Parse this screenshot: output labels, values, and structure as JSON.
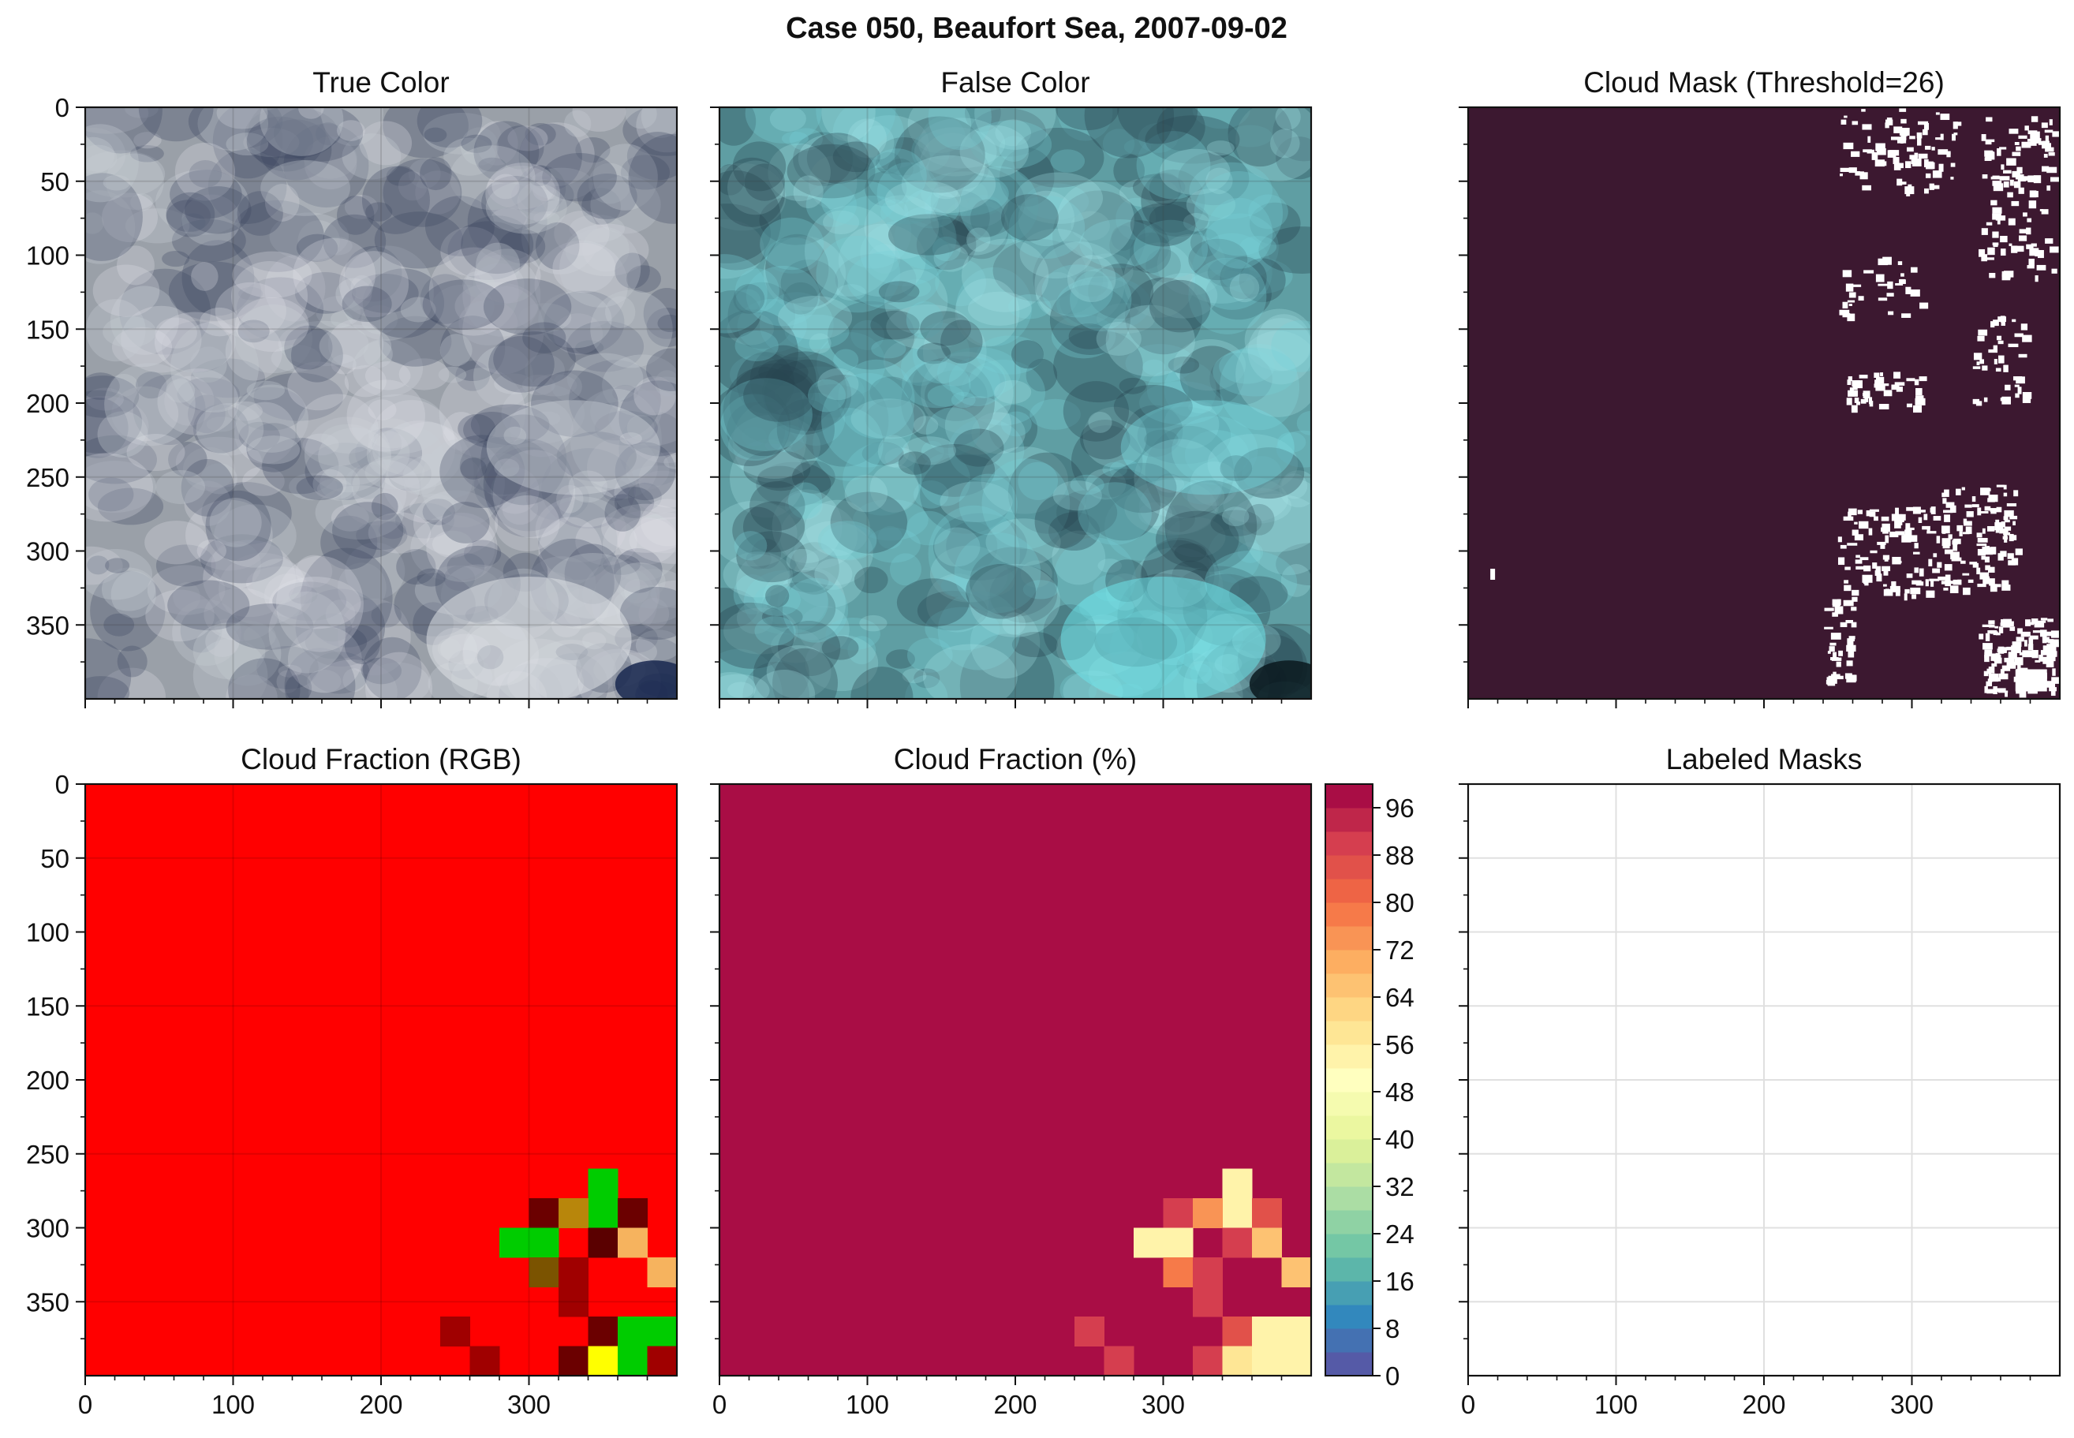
{
  "figure": {
    "suptitle": "Case 050, Beaufort Sea, 2007-09-02"
  },
  "panels": [
    {
      "id": "true-color",
      "title": "True Color"
    },
    {
      "id": "false-color",
      "title": "False Color"
    },
    {
      "id": "cloud-mask",
      "title": "Cloud Mask (Threshold=26)"
    },
    {
      "id": "cloud-fraction-rgb",
      "title": "Cloud Fraction (RGB)"
    },
    {
      "id": "cloud-fraction-pct",
      "title": "Cloud Fraction (%)"
    },
    {
      "id": "labeled-masks",
      "title": "Labeled Masks"
    }
  ],
  "colors": {
    "mask_background": "#3c1830",
    "mask_cloud": "#ffffff",
    "fraction_rgb_main": "#ff0000",
    "fraction_pct_main": "#9a0041"
  },
  "chart_data": [
    {
      "type": "image",
      "panel": "True Color",
      "ylim": [
        400,
        0
      ],
      "xlim": [
        0,
        400
      ],
      "y_ticks": [
        0,
        50,
        100,
        150,
        200,
        250,
        300,
        350
      ],
      "grid": true
    },
    {
      "type": "image",
      "panel": "False Color",
      "ylim": [
        400,
        0
      ],
      "xlim": [
        0,
        400
      ],
      "grid": true
    },
    {
      "type": "image",
      "panel": "Cloud Mask (Threshold=26)",
      "ylim": [
        400,
        0
      ],
      "xlim": [
        0,
        400
      ],
      "grid": false
    },
    {
      "type": "heatmap",
      "panel": "Cloud Fraction (RGB)",
      "x_ticks": [
        0,
        100,
        200,
        300
      ],
      "y_ticks": [
        0,
        50,
        100,
        150,
        200,
        250,
        300,
        350
      ],
      "cell_size": 20,
      "xlim": [
        0,
        400
      ],
      "ylim": [
        400,
        0
      ],
      "default_color": "#ff0000",
      "cells": [
        {
          "x": 340,
          "y": 260,
          "color": "#00cc00"
        },
        {
          "x": 340,
          "y": 280,
          "color": "#00cc00"
        },
        {
          "x": 300,
          "y": 280,
          "color": "#6b0000"
        },
        {
          "x": 320,
          "y": 280,
          "color": "#b8860b"
        },
        {
          "x": 360,
          "y": 280,
          "color": "#6b0000"
        },
        {
          "x": 280,
          "y": 300,
          "color": "#00cc00"
        },
        {
          "x": 300,
          "y": 300,
          "color": "#00cc00"
        },
        {
          "x": 340,
          "y": 300,
          "color": "#5a0000"
        },
        {
          "x": 360,
          "y": 300,
          "color": "#f6b35e"
        },
        {
          "x": 300,
          "y": 320,
          "color": "#7b5300"
        },
        {
          "x": 320,
          "y": 320,
          "color": "#a00000"
        },
        {
          "x": 380,
          "y": 320,
          "color": "#f6b35e"
        },
        {
          "x": 320,
          "y": 340,
          "color": "#a00000"
        },
        {
          "x": 240,
          "y": 360,
          "color": "#a00000"
        },
        {
          "x": 340,
          "y": 360,
          "color": "#6b0000"
        },
        {
          "x": 360,
          "y": 360,
          "color": "#00cc00"
        },
        {
          "x": 380,
          "y": 360,
          "color": "#00cc00"
        },
        {
          "x": 260,
          "y": 380,
          "color": "#a00000"
        },
        {
          "x": 320,
          "y": 380,
          "color": "#6b0000"
        },
        {
          "x": 340,
          "y": 380,
          "color": "#ffff00"
        },
        {
          "x": 360,
          "y": 380,
          "color": "#00cc00"
        },
        {
          "x": 380,
          "y": 380,
          "color": "#a00000"
        }
      ]
    },
    {
      "type": "heatmap",
      "panel": "Cloud Fraction (%)",
      "x_ticks": [
        0,
        100,
        200,
        300
      ],
      "cell_size": 20,
      "xlim": [
        0,
        400
      ],
      "ylim": [
        400,
        0
      ],
      "default_value": 100,
      "cells": [
        {
          "x": 340,
          "y": 260,
          "value": 54
        },
        {
          "x": 340,
          "y": 280,
          "value": 54
        },
        {
          "x": 300,
          "y": 280,
          "value": 88
        },
        {
          "x": 320,
          "y": 280,
          "value": 72
        },
        {
          "x": 360,
          "y": 280,
          "value": 86
        },
        {
          "x": 280,
          "y": 300,
          "value": 54
        },
        {
          "x": 300,
          "y": 300,
          "value": 54
        },
        {
          "x": 340,
          "y": 300,
          "value": 88
        },
        {
          "x": 360,
          "y": 300,
          "value": 66
        },
        {
          "x": 300,
          "y": 320,
          "value": 78
        },
        {
          "x": 320,
          "y": 320,
          "value": 88
        },
        {
          "x": 380,
          "y": 320,
          "value": 66
        },
        {
          "x": 320,
          "y": 340,
          "value": 88
        },
        {
          "x": 240,
          "y": 360,
          "value": 88
        },
        {
          "x": 340,
          "y": 360,
          "value": 86
        },
        {
          "x": 360,
          "y": 360,
          "value": 54
        },
        {
          "x": 380,
          "y": 360,
          "value": 54
        },
        {
          "x": 260,
          "y": 380,
          "value": 88
        },
        {
          "x": 320,
          "y": 380,
          "value": 88
        },
        {
          "x": 340,
          "y": 380,
          "value": 58
        },
        {
          "x": 360,
          "y": 380,
          "value": 54
        },
        {
          "x": 380,
          "y": 380,
          "value": 54
        }
      ],
      "colorbar": {
        "ticks": [
          0,
          8,
          16,
          24,
          32,
          40,
          48,
          56,
          64,
          72,
          80,
          88,
          96
        ],
        "range": [
          0,
          100
        ],
        "levels": 25,
        "colormap": "Spectral_r"
      }
    },
    {
      "type": "image",
      "panel": "Labeled Masks",
      "x_ticks": [
        0,
        100,
        200,
        300
      ],
      "xlim": [
        0,
        400
      ],
      "ylim": [
        400,
        0
      ],
      "grid": true,
      "empty": true
    }
  ]
}
